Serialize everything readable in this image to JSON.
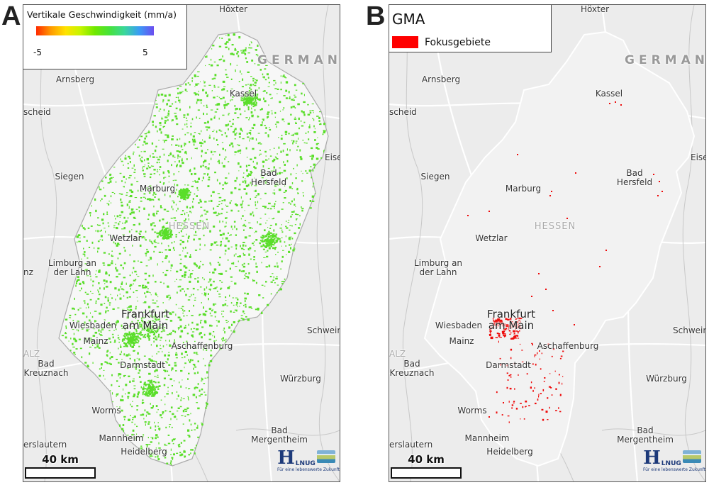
{
  "panels": {
    "a_letter": "A",
    "b_letter": "B"
  },
  "legend_a": {
    "title": "Vertikale Geschwindigkeit (mm/a)",
    "min_label": "-5",
    "max_label": "5",
    "ramp_colors": [
      "#ff2a00",
      "#ff9a00",
      "#ffe200",
      "#c6f500",
      "#6fe800",
      "#46e23c",
      "#3ad79a",
      "#3a9cf5",
      "#6b4cf0"
    ]
  },
  "legend_b": {
    "title": "GMA",
    "item_label": "Fokusgebiete",
    "item_color": "#ff0000"
  },
  "colors": {
    "point_green": "#5ade2a",
    "focus_red": "#ee0a0a",
    "hessen_fill": "#f7f7f7",
    "basemap": "#ececec",
    "roads": "#ffffff"
  },
  "map_labels": {
    "hoexter": "Höxter",
    "germany": "GERMAN",
    "arnsberg": "Arnsberg",
    "kassel": "Kassel",
    "scheid": "scheid",
    "eise": "Eise",
    "siegen": "Siegen",
    "bad_hersfeld": "Bad\nHersfeld",
    "marburg": "Marburg",
    "hessen": "HESSEN",
    "wetzlar": "Wetzlar",
    "limburg": "Limburg an\nder Lahn",
    "nz": "nz",
    "frankfurt": "Frankfurt\nam Main",
    "wiesbaden": "Wiesbaden",
    "schwein": "Schwein",
    "mainz": "Mainz",
    "aschaffenburg": "Aschaffenburg",
    "alz": "ALZ",
    "bad_kreuznach": "Bad\nKreuznach",
    "darmstadt": "Darmstadt",
    "wuerzburg": "Würzburg",
    "worms": "Worms",
    "bad_mergentheim": "Bad\nMergentheim",
    "mannheim": "Mannheim",
    "kaiserslautern": "erslautern",
    "heidelberg": "Heidelberg"
  },
  "scale_bar": {
    "label": "40 km"
  },
  "logo": {
    "mark": "H",
    "letters": "LNUG",
    "tagline": "Für eine lebenswerte Zukunft"
  }
}
